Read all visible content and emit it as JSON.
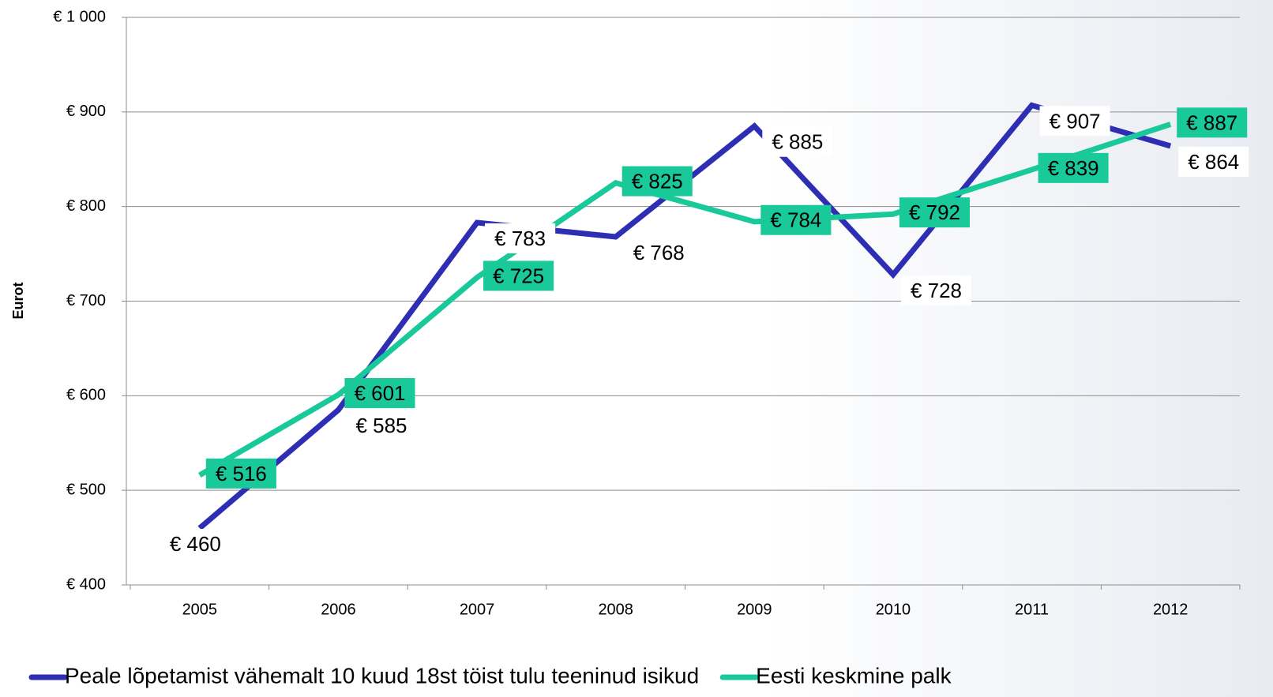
{
  "chart_data": {
    "type": "line",
    "y_label": "Eurot",
    "categories": [
      "2005",
      "2006",
      "2007",
      "2008",
      "2009",
      "2010",
      "2011",
      "2012"
    ],
    "series": [
      {
        "name": "Peale lõpetamist vähemalt 10 kuud 18st töist tulu teeninud isikud",
        "color": "#2e2eb4",
        "values": [
          460,
          585,
          783,
          768,
          885,
          728,
          907,
          864
        ],
        "value_labels": [
          "€ 460",
          "€ 585",
          "€ 783",
          "€ 768",
          "€ 885",
          "€ 728",
          "€ 907",
          "€ 864"
        ]
      },
      {
        "name": "Eesti keskmine palk",
        "color": "#19c99a",
        "values": [
          516,
          601,
          725,
          825,
          784,
          792,
          839,
          887
        ],
        "value_labels": [
          "€ 516",
          "€ 601",
          "€ 725",
          "€ 825",
          "€ 784",
          "€ 792",
          "€ 839",
          "€ 887"
        ]
      }
    ],
    "ylim": [
      400,
      1000
    ],
    "yticks": [
      {
        "value": 400,
        "label": "€ 400"
      },
      {
        "value": 500,
        "label": "€ 500"
      },
      {
        "value": 600,
        "label": "€ 600"
      },
      {
        "value": 700,
        "label": "€ 700"
      },
      {
        "value": 800,
        "label": "€ 800"
      },
      {
        "value": 900,
        "label": "€ 900"
      },
      {
        "value": 1000,
        "label": "€ 1 000"
      }
    ],
    "grid": true,
    "legend": "bottom"
  }
}
